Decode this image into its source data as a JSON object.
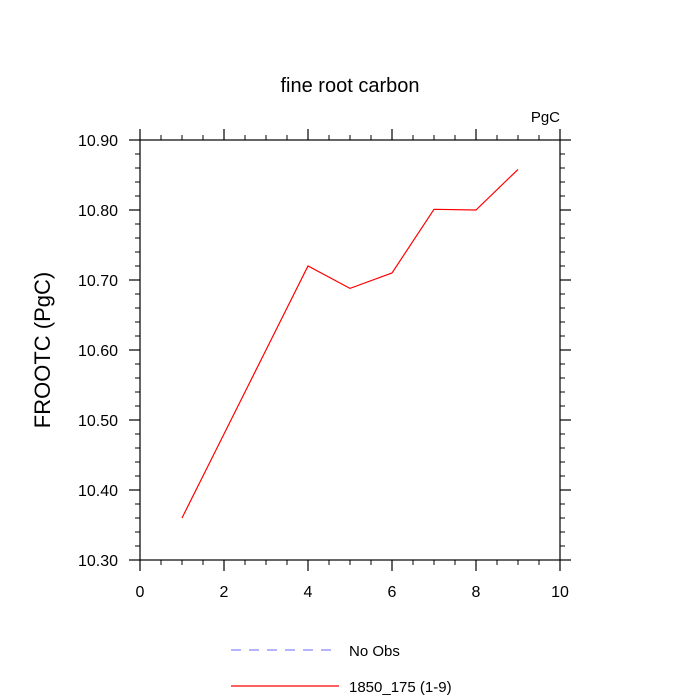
{
  "chart_data": {
    "type": "line",
    "title": "fine root carbon",
    "units_label": "PgC",
    "xlabel": "",
    "ylabel": "FROOTC  (PgC)",
    "xlim": [
      0,
      10
    ],
    "ylim": [
      10.3,
      10.9
    ],
    "x_ticks": [
      0,
      2,
      4,
      6,
      8,
      10
    ],
    "y_ticks": [
      10.3,
      10.4,
      10.5,
      10.6,
      10.7,
      10.8,
      10.9
    ],
    "x_tick_labels": [
      "0",
      "2",
      "4",
      "6",
      "8",
      "10"
    ],
    "y_tick_labels": [
      "10.30",
      "10.40",
      "10.50",
      "10.60",
      "10.70",
      "10.80",
      "10.90"
    ],
    "grid": false,
    "legend_placement": "bottom",
    "series": [
      {
        "name": "1850_175 (1-9)",
        "color": "#ff0000",
        "style": "solid",
        "x": [
          1,
          2,
          3,
          4,
          5,
          6,
          7,
          8,
          9
        ],
        "y": [
          10.36,
          10.48,
          10.6,
          10.72,
          10.688,
          10.71,
          10.801,
          10.8,
          10.858
        ]
      }
    ],
    "legend": [
      {
        "label": "No Obs",
        "color": "#8888ff",
        "style": "dashed"
      },
      {
        "label": "1850_175 (1-9)",
        "color": "#ff0000",
        "style": "solid"
      }
    ]
  }
}
